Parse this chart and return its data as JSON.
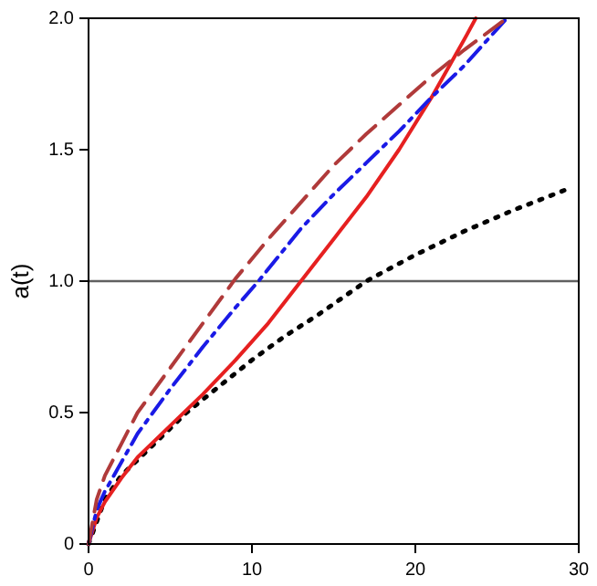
{
  "chart_data": {
    "type": "line",
    "ylabel": "a(t)",
    "xlim": [
      0,
      30
    ],
    "ylim": [
      0,
      2
    ],
    "xticks": [
      0,
      10,
      20,
      30
    ],
    "yticks": [
      0,
      {
        "value": 0.5,
        "label": "0.5"
      },
      {
        "value": 1,
        "label": "1.0"
      },
      {
        "value": 1.5,
        "label": "1.5"
      },
      {
        "value": 2,
        "label": "2.0"
      }
    ],
    "grid": false,
    "legend": false,
    "marker": "none",
    "ref_lines": [
      {
        "axis": "y",
        "value": 1,
        "color": "#606060"
      }
    ],
    "series": [
      {
        "color": "#b03a3a",
        "line_style": "dashed",
        "x": [
          0,
          0.5,
          1,
          2,
          3,
          5,
          7,
          9,
          11,
          13,
          15,
          17,
          19,
          21,
          23,
          25.6
        ],
        "values": [
          0,
          0.17,
          0.26,
          0.38,
          0.5,
          0.67,
          0.84,
          1.01,
          1.16,
          1.3,
          1.44,
          1.56,
          1.67,
          1.78,
          1.88,
          2.0
        ]
      },
      {
        "color": "#1a1ae6",
        "line_style": "dashdot",
        "x": [
          0,
          0.5,
          1,
          2,
          3,
          5,
          7,
          9,
          10.4,
          13,
          15,
          17,
          19,
          21,
          23,
          25.6
        ],
        "values": [
          0,
          0.13,
          0.2,
          0.31,
          0.42,
          0.59,
          0.75,
          0.9,
          1.0,
          1.2,
          1.33,
          1.45,
          1.57,
          1.7,
          1.82,
          2.0
        ]
      },
      {
        "color": "#e62020",
        "line_style": "solid",
        "x": [
          0,
          0.5,
          1,
          2,
          3,
          5,
          7,
          9,
          11,
          13,
          15,
          17,
          19,
          21,
          23,
          23.7
        ],
        "values": [
          0,
          0.1,
          0.16,
          0.25,
          0.33,
          0.45,
          0.57,
          0.7,
          0.84,
          1.0,
          1.16,
          1.32,
          1.5,
          1.7,
          1.92,
          2.0
        ]
      },
      {
        "color": "#000000",
        "line_style": "dotted",
        "x": [
          0,
          1,
          2,
          4,
          6,
          8,
          10,
          12,
          14,
          17,
          20,
          23,
          26,
          29.3
        ],
        "values": [
          0,
          0.17,
          0.26,
          0.38,
          0.5,
          0.6,
          0.7,
          0.79,
          0.87,
          1.0,
          1.1,
          1.19,
          1.27,
          1.35
        ]
      }
    ]
  }
}
